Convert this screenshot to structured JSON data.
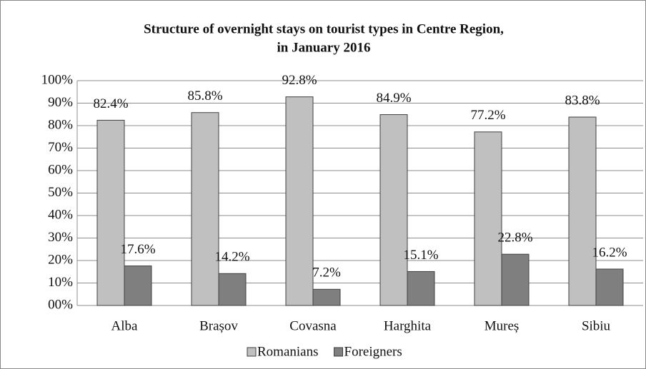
{
  "chart_data": {
    "type": "bar",
    "title": [
      "Structure of overnight stays on tourist types in Centre Region,",
      "in January 2016"
    ],
    "categories": [
      "Alba",
      "Brașov",
      "Covasna",
      "Harghita",
      "Mureș",
      "Sibiu"
    ],
    "series": [
      {
        "name": "Romanians",
        "color": "#c0c0c0",
        "values": [
          82.4,
          85.8,
          92.8,
          84.9,
          77.2,
          83.8
        ],
        "value_labels": [
          "82.4%",
          "85.8%",
          "92.8%",
          "84.9%",
          "77.2%",
          "83.8%"
        ]
      },
      {
        "name": "Foreigners",
        "color": "#7f7f7f",
        "values": [
          17.6,
          14.2,
          7.2,
          15.1,
          22.8,
          16.2
        ],
        "value_labels": [
          "17.6%",
          "14.2%",
          "7.2%",
          "15.1%",
          "22.8%",
          "16.2%"
        ]
      }
    ],
    "ylim": [
      0,
      100
    ],
    "yticks": [
      {
        "value": 0,
        "label": "00%"
      },
      {
        "value": 10,
        "label": "10%"
      },
      {
        "value": 20,
        "label": "20%"
      },
      {
        "value": 30,
        "label": "30%"
      },
      {
        "value": 40,
        "label": "40%"
      },
      {
        "value": 50,
        "label": "50%"
      },
      {
        "value": 60,
        "label": "60%"
      },
      {
        "value": 70,
        "label": "70%"
      },
      {
        "value": 80,
        "label": "80%"
      },
      {
        "value": 90,
        "label": "90%"
      },
      {
        "value": 100,
        "label": "100%"
      }
    ],
    "grid": true,
    "legend": "bottom"
  }
}
